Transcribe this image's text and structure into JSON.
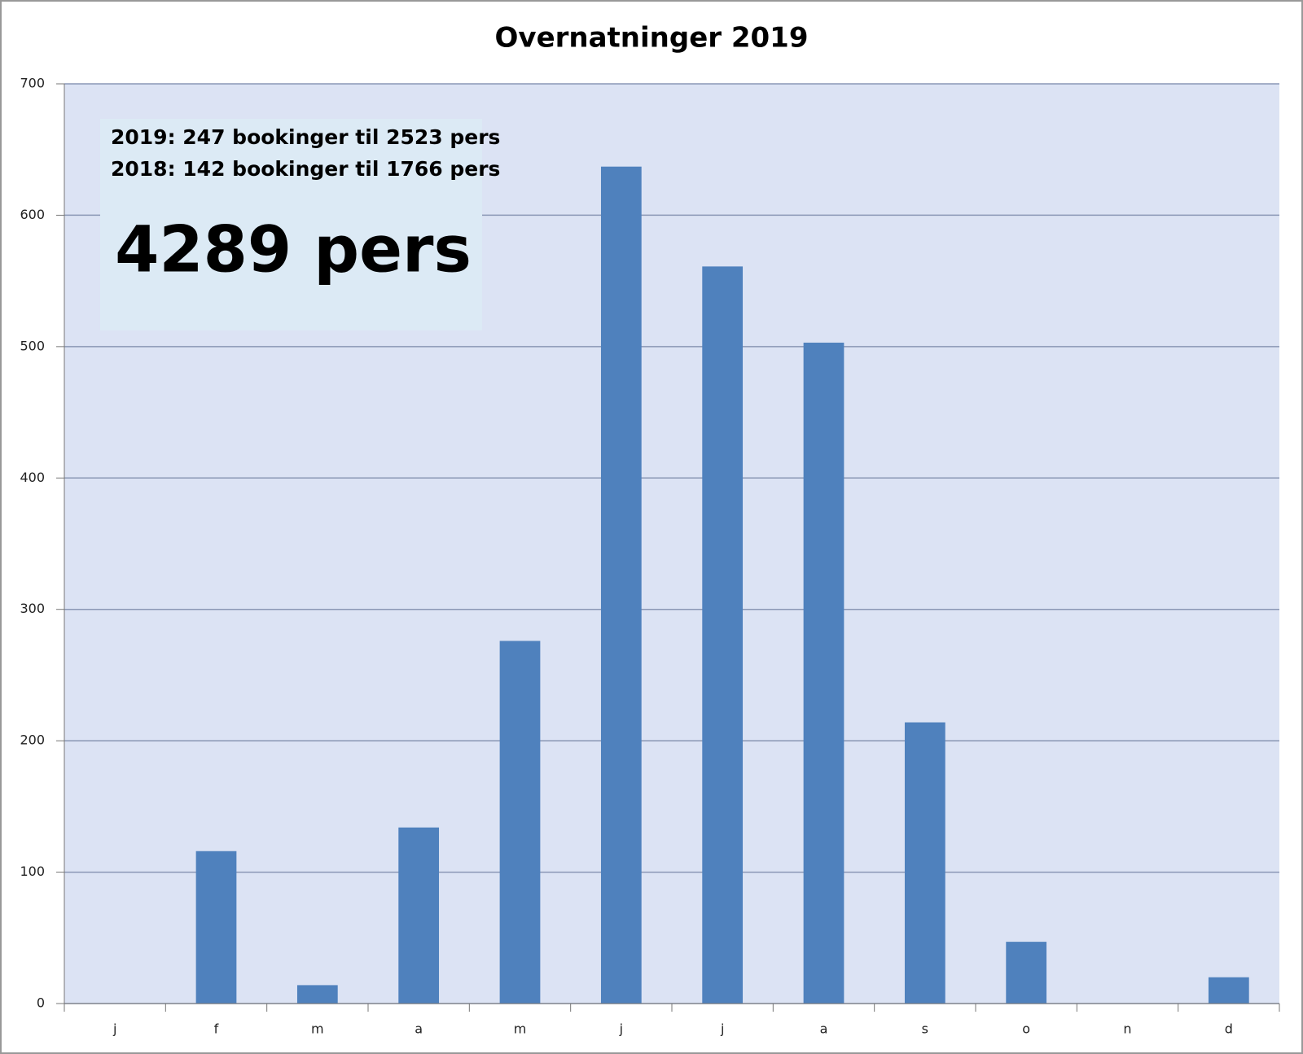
{
  "chart_data": {
    "type": "bar",
    "title": "Overnatninger 2019",
    "categories": [
      "j",
      "f",
      "m",
      "a",
      "m",
      "j",
      "j",
      "a",
      "s",
      "o",
      "n",
      "d"
    ],
    "values": [
      0,
      116,
      14,
      134,
      276,
      637,
      561,
      503,
      214,
      47,
      0,
      20
    ],
    "color": "#4f81bd",
    "ylim": [
      0,
      700
    ],
    "yticks": [
      0,
      100,
      200,
      300,
      400,
      500,
      600,
      700
    ],
    "grid": true,
    "annotations": [
      "2019:  247 bookinger til 2523 pers",
      "2018:  142 bookinger til 1766 pers",
      "4289 pers"
    ]
  }
}
